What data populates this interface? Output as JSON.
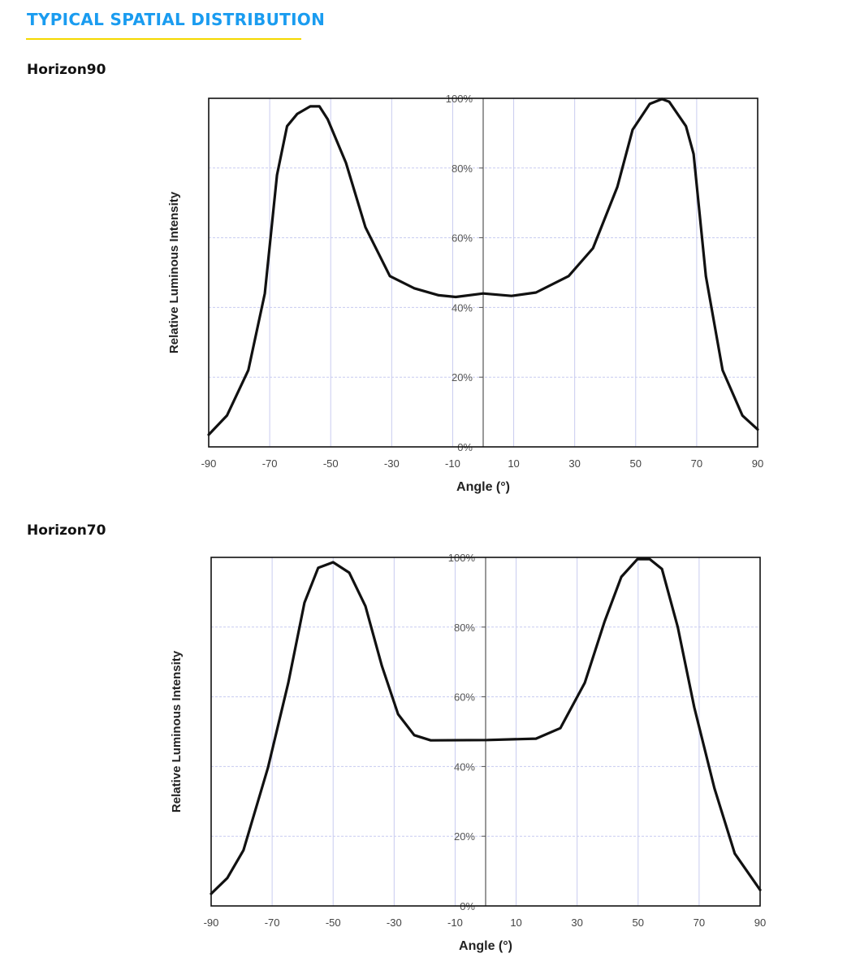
{
  "section_title": "TYPICAL SPATIAL DISTRIBUTION",
  "colors": {
    "title": "#1a9cf0",
    "underline": "#f5d800",
    "curve": "#111111",
    "grid": "#c8ccf0"
  },
  "chart_data": [
    {
      "type": "line",
      "title": "Horizon90",
      "xlabel": "Angle (°)",
      "ylabel": "Relative Luminous Intensity",
      "xlim": [
        -90,
        90
      ],
      "ylim": [
        0,
        100
      ],
      "xticks": [
        -90,
        -70,
        -50,
        -30,
        -10,
        10,
        30,
        50,
        70,
        90
      ],
      "yticks": [
        "0%",
        "20%",
        "40%",
        "60%",
        "80%",
        "100%"
      ],
      "grid": true,
      "x": [
        -90,
        -84,
        -77,
        -71.6,
        -67.6,
        -64.3,
        -61,
        -56.7,
        -53.7,
        -51,
        -45,
        -38.6,
        -30.6,
        -22.6,
        -14.6,
        -9,
        0,
        9.3,
        17.3,
        28,
        36,
        44,
        49,
        54.6,
        58.6,
        61,
        66.5,
        69,
        73,
        78.5,
        85,
        90
      ],
      "y": [
        3.5,
        9,
        22,
        44,
        78,
        92,
        95.5,
        97.7,
        97.7,
        94,
        81.5,
        63,
        49,
        45.5,
        43.5,
        43,
        44,
        43.3,
        44.3,
        49,
        57,
        74.6,
        91,
        98.4,
        99.8,
        99,
        92,
        84,
        49,
        22,
        9,
        5
      ]
    },
    {
      "type": "line",
      "title": "Horizon70",
      "xlabel": "Angle (°)",
      "ylabel": "Relative Luminous Intensity",
      "xlim": [
        -90,
        90
      ],
      "ylim": [
        0,
        100
      ],
      "xticks": [
        -90,
        -70,
        -50,
        -30,
        -10,
        10,
        30,
        50,
        70,
        90
      ],
      "yticks": [
        "0%",
        "20%",
        "40%",
        "60%",
        "80%",
        "100%"
      ],
      "grid": true,
      "x": [
        -90,
        -84.7,
        -79.4,
        -71.4,
        -64.7,
        -59.4,
        -54.9,
        -50,
        -44.7,
        -39.4,
        -34,
        -28.7,
        -23.4,
        -18,
        0.5,
        16.5,
        24.5,
        32.5,
        39,
        44.5,
        49.8,
        53.8,
        57.8,
        63,
        68.4,
        75,
        81.7,
        90
      ],
      "y": [
        3.5,
        8,
        16,
        39.6,
        64,
        87,
        97,
        98.6,
        95.6,
        86,
        68.8,
        55,
        49,
        47.5,
        47.6,
        48,
        51,
        64,
        81.6,
        94.4,
        99.5,
        99.5,
        96.7,
        80,
        57,
        33.8,
        15,
        4.6
      ]
    }
  ]
}
